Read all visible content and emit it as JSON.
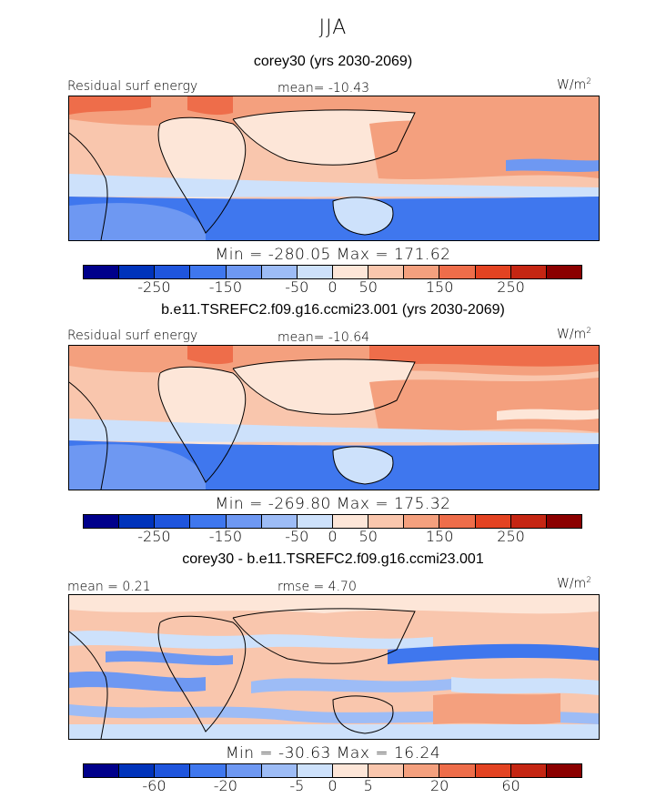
{
  "season": "JJA",
  "colorbar_colors": [
    "#00008b",
    "#0033bb",
    "#1f55dd",
    "#3f77ee",
    "#6e98f2",
    "#9dbcf6",
    "#cde1fb",
    "#fde6d8",
    "#f9c6ad",
    "#f4a07e",
    "#ee6d4a",
    "#e34322",
    "#c52613",
    "#8b0000"
  ],
  "panels": [
    {
      "title": "corey30 (yrs 2030-2069)",
      "left_label": "Residual surf energy",
      "center_label": "mean= -10.43",
      "unit": "W/m",
      "unit_sup": "2",
      "minmax": "Min = -280.05 Max = 171.62",
      "ticks": [
        "-250",
        "-150",
        "-50",
        "0",
        "50",
        "150",
        "250"
      ]
    },
    {
      "title": "b.e11.TSREFC2.f09.g16.ccmi23.001 (yrs 2030-2069)",
      "left_label": "Residual surf energy",
      "center_label": "mean= -10.64",
      "unit": "W/m",
      "unit_sup": "2",
      "minmax": "Min = -269.80 Max = 175.32",
      "ticks": [
        "-250",
        "-150",
        "-50",
        "0",
        "50",
        "150",
        "250"
      ]
    },
    {
      "title": "corey30 - b.e11.TSREFC2.f09.g16.ccmi23.001",
      "left_label": "mean = 0.21",
      "center_label": "rmse = 4.70",
      "unit": "W/m",
      "unit_sup": "2",
      "minmax": "Min = -30.63 Max = 16.24",
      "ticks": [
        "-60",
        "-20",
        "-5",
        "0",
        "5",
        "20",
        "60"
      ]
    }
  ],
  "chart_data": [
    {
      "type": "heatmap",
      "title": "corey30 (yrs 2030-2069)",
      "field": "Residual surf energy",
      "season": "JJA",
      "units": "W/m2",
      "mean": -10.43,
      "min": -280.05,
      "max": 171.62,
      "colorbar_ticks": [
        -250,
        -150,
        -50,
        0,
        50,
        150,
        250
      ]
    },
    {
      "type": "heatmap",
      "title": "b.e11.TSREFC2.f09.g16.ccmi23.001 (yrs 2030-2069)",
      "field": "Residual surf energy",
      "season": "JJA",
      "units": "W/m2",
      "mean": -10.64,
      "min": -269.8,
      "max": 175.32,
      "colorbar_ticks": [
        -250,
        -150,
        -50,
        0,
        50,
        150,
        250
      ]
    },
    {
      "type": "heatmap",
      "title": "corey30 - b.e11.TSREFC2.f09.g16.ccmi23.001",
      "season": "JJA",
      "units": "W/m2",
      "mean": 0.21,
      "rmse": 4.7,
      "min": -30.63,
      "max": 16.24,
      "colorbar_ticks": [
        -60,
        -20,
        -5,
        0,
        5,
        20,
        60
      ]
    }
  ]
}
